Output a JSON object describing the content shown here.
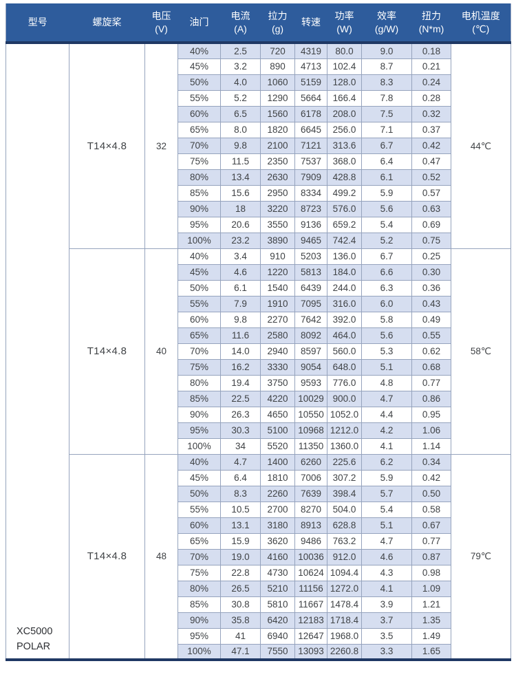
{
  "colors": {
    "header_bg": "#2e5c9c",
    "header_text": "#ffffff",
    "divider_dark": "#1f3864",
    "row_band": "#d6def0",
    "grid_border": "#95a3bd",
    "cell_text": "#3f4245"
  },
  "table": {
    "columns": [
      {
        "label": "型号",
        "unit": ""
      },
      {
        "label": "螺旋桨",
        "unit": ""
      },
      {
        "label": "电压",
        "unit": "(V)"
      },
      {
        "label": "油门",
        "unit": ""
      },
      {
        "label": "电流",
        "unit": "(A)"
      },
      {
        "label": "拉力",
        "unit": "(g)"
      },
      {
        "label": "转速",
        "unit": ""
      },
      {
        "label": "功率",
        "unit": "(W)"
      },
      {
        "label": "效率",
        "unit": "(g/W)"
      },
      {
        "label": "扭力",
        "unit": "(N*m)"
      },
      {
        "label": "电机温度",
        "unit": "(℃)"
      }
    ],
    "model_lines": [
      "XC5000",
      "POLAR"
    ],
    "sections": [
      {
        "propeller": "T14×4.8",
        "voltage": "32",
        "temperature": "44℃",
        "rows": [
          [
            "40%",
            "2.5",
            "720",
            "4319",
            "80.0",
            "9.0",
            "0.18"
          ],
          [
            "45%",
            "3.2",
            "890",
            "4713",
            "102.4",
            "8.7",
            "0.21"
          ],
          [
            "50%",
            "4.0",
            "1060",
            "5159",
            "128.0",
            "8.3",
            "0.24"
          ],
          [
            "55%",
            "5.2",
            "1290",
            "5664",
            "166.4",
            "7.8",
            "0.28"
          ],
          [
            "60%",
            "6.5",
            "1560",
            "6178",
            "208.0",
            "7.5",
            "0.32"
          ],
          [
            "65%",
            "8.0",
            "1820",
            "6645",
            "256.0",
            "7.1",
            "0.37"
          ],
          [
            "70%",
            "9.8",
            "2100",
            "7121",
            "313.6",
            "6.7",
            "0.42"
          ],
          [
            "75%",
            "11.5",
            "2350",
            "7537",
            "368.0",
            "6.4",
            "0.47"
          ],
          [
            "80%",
            "13.4",
            "2630",
            "7909",
            "428.8",
            "6.1",
            "0.52"
          ],
          [
            "85%",
            "15.6",
            "2950",
            "8334",
            "499.2",
            "5.9",
            "0.57"
          ],
          [
            "90%",
            "18",
            "3220",
            "8723",
            "576.0",
            "5.6",
            "0.63"
          ],
          [
            "95%",
            "20.6",
            "3550",
            "9136",
            "659.2",
            "5.4",
            "0.69"
          ],
          [
            "100%",
            "23.2",
            "3890",
            "9465",
            "742.4",
            "5.2",
            "0.75"
          ]
        ]
      },
      {
        "propeller": "T14×4.8",
        "voltage": "40",
        "temperature": "58℃",
        "rows": [
          [
            "40%",
            "3.4",
            "910",
            "5203",
            "136.0",
            "6.7",
            "0.25"
          ],
          [
            "45%",
            "4.6",
            "1220",
            "5813",
            "184.0",
            "6.6",
            "0.30"
          ],
          [
            "50%",
            "6.1",
            "1540",
            "6439",
            "244.0",
            "6.3",
            "0.36"
          ],
          [
            "55%",
            "7.9",
            "1910",
            "7095",
            "316.0",
            "6.0",
            "0.43"
          ],
          [
            "60%",
            "9.8",
            "2270",
            "7642",
            "392.0",
            "5.8",
            "0.49"
          ],
          [
            "65%",
            "11.6",
            "2580",
            "8092",
            "464.0",
            "5.6",
            "0.55"
          ],
          [
            "70%",
            "14.0",
            "2940",
            "8597",
            "560.0",
            "5.3",
            "0.62"
          ],
          [
            "75%",
            "16.2",
            "3330",
            "9054",
            "648.0",
            "5.1",
            "0.68"
          ],
          [
            "80%",
            "19.4",
            "3750",
            "9593",
            "776.0",
            "4.8",
            "0.77"
          ],
          [
            "85%",
            "22.5",
            "4220",
            "10029",
            "900.0",
            "4.7",
            "0.86"
          ],
          [
            "90%",
            "26.3",
            "4650",
            "10550",
            "1052.0",
            "4.4",
            "0.95"
          ],
          [
            "95%",
            "30.3",
            "5100",
            "10968",
            "1212.0",
            "4.2",
            "1.06"
          ],
          [
            "100%",
            "34",
            "5520",
            "11350",
            "1360.0",
            "4.1",
            "1.14"
          ]
        ]
      },
      {
        "propeller": "T14×4.8",
        "voltage": "48",
        "temperature": "79℃",
        "rows": [
          [
            "40%",
            "4.7",
            "1400",
            "6260",
            "225.6",
            "6.2",
            "0.34"
          ],
          [
            "45%",
            "6.4",
            "1810",
            "7006",
            "307.2",
            "5.9",
            "0.42"
          ],
          [
            "50%",
            "8.3",
            "2260",
            "7639",
            "398.4",
            "5.7",
            "0.50"
          ],
          [
            "55%",
            "10.5",
            "2700",
            "8270",
            "504.0",
            "5.4",
            "0.58"
          ],
          [
            "60%",
            "13.1",
            "3180",
            "8913",
            "628.8",
            "5.1",
            "0.67"
          ],
          [
            "65%",
            "15.9",
            "3620",
            "9486",
            "763.2",
            "4.7",
            "0.77"
          ],
          [
            "70%",
            "19.0",
            "4160",
            "10036",
            "912.0",
            "4.6",
            "0.87"
          ],
          [
            "75%",
            "22.8",
            "4730",
            "10624",
            "1094.4",
            "4.3",
            "0.98"
          ],
          [
            "80%",
            "26.5",
            "5210",
            "11156",
            "1272.0",
            "4.1",
            "1.09"
          ],
          [
            "85%",
            "30.8",
            "5810",
            "11667",
            "1478.4",
            "3.9",
            "1.21"
          ],
          [
            "90%",
            "35.8",
            "6420",
            "12183",
            "1718.4",
            "3.7",
            "1.35"
          ],
          [
            "95%",
            "41",
            "6940",
            "12647",
            "1968.0",
            "3.5",
            "1.49"
          ],
          [
            "100%",
            "47.1",
            "7550",
            "13093",
            "2260.8",
            "3.3",
            "1.65"
          ]
        ]
      }
    ]
  }
}
